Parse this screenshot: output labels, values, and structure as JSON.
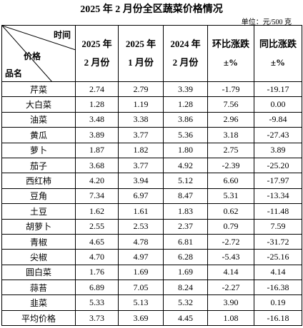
{
  "title": "2025 年 2 月份全区蔬菜价格情况",
  "unit": "单位：元/500 克",
  "table": {
    "corner": {
      "time": "时间",
      "price": "价格",
      "name": "品名"
    },
    "columns": [
      [
        "2025 年",
        "2 月份"
      ],
      [
        "2025 年",
        "1 月份"
      ],
      [
        "2024 年",
        "2 月份"
      ],
      [
        "环比涨跌",
        "±%"
      ],
      [
        "同比涨跌",
        "±%"
      ]
    ],
    "rows": [
      [
        "芹菜",
        "2.74",
        "2.79",
        "3.39",
        "-1.79",
        "-19.17"
      ],
      [
        "大白菜",
        "1.28",
        "1.19",
        "1.28",
        "7.56",
        "0.00"
      ],
      [
        "油菜",
        "3.48",
        "3.38",
        "3.86",
        "2.96",
        "-9.84"
      ],
      [
        "黄瓜",
        "3.89",
        "3.77",
        "5.36",
        "3.18",
        "-27.43"
      ],
      [
        "萝卜",
        "1.87",
        "1.82",
        "1.80",
        "2.75",
        "3.89"
      ],
      [
        "茄子",
        "3.68",
        "3.77",
        "4.92",
        "-2.39",
        "-25.20"
      ],
      [
        "西红柿",
        "4.20",
        "3.94",
        "5.12",
        "6.60",
        "-17.97"
      ],
      [
        "豆角",
        "7.34",
        "6.97",
        "8.47",
        "5.31",
        "-13.34"
      ],
      [
        "土豆",
        "1.62",
        "1.61",
        "1.83",
        "0.62",
        "-11.48"
      ],
      [
        "胡萝卜",
        "2.55",
        "2.53",
        "2.37",
        "0.79",
        "7.59"
      ],
      [
        "青椒",
        "4.65",
        "4.78",
        "6.81",
        "-2.72",
        "-31.72"
      ],
      [
        "尖椒",
        "4.70",
        "4.97",
        "6.28",
        "-5.43",
        "-25.16"
      ],
      [
        "圆白菜",
        "1.76",
        "1.69",
        "1.69",
        "4.14",
        "4.14"
      ],
      [
        "蒜苔",
        "6.89",
        "7.05",
        "8.24",
        "-2.27",
        "-16.38"
      ],
      [
        "韭菜",
        "5.33",
        "5.13",
        "5.32",
        "3.90",
        "0.19"
      ],
      [
        "平均价格",
        "3.73",
        "3.69",
        "4.45",
        "1.08",
        "-16.18"
      ]
    ]
  }
}
